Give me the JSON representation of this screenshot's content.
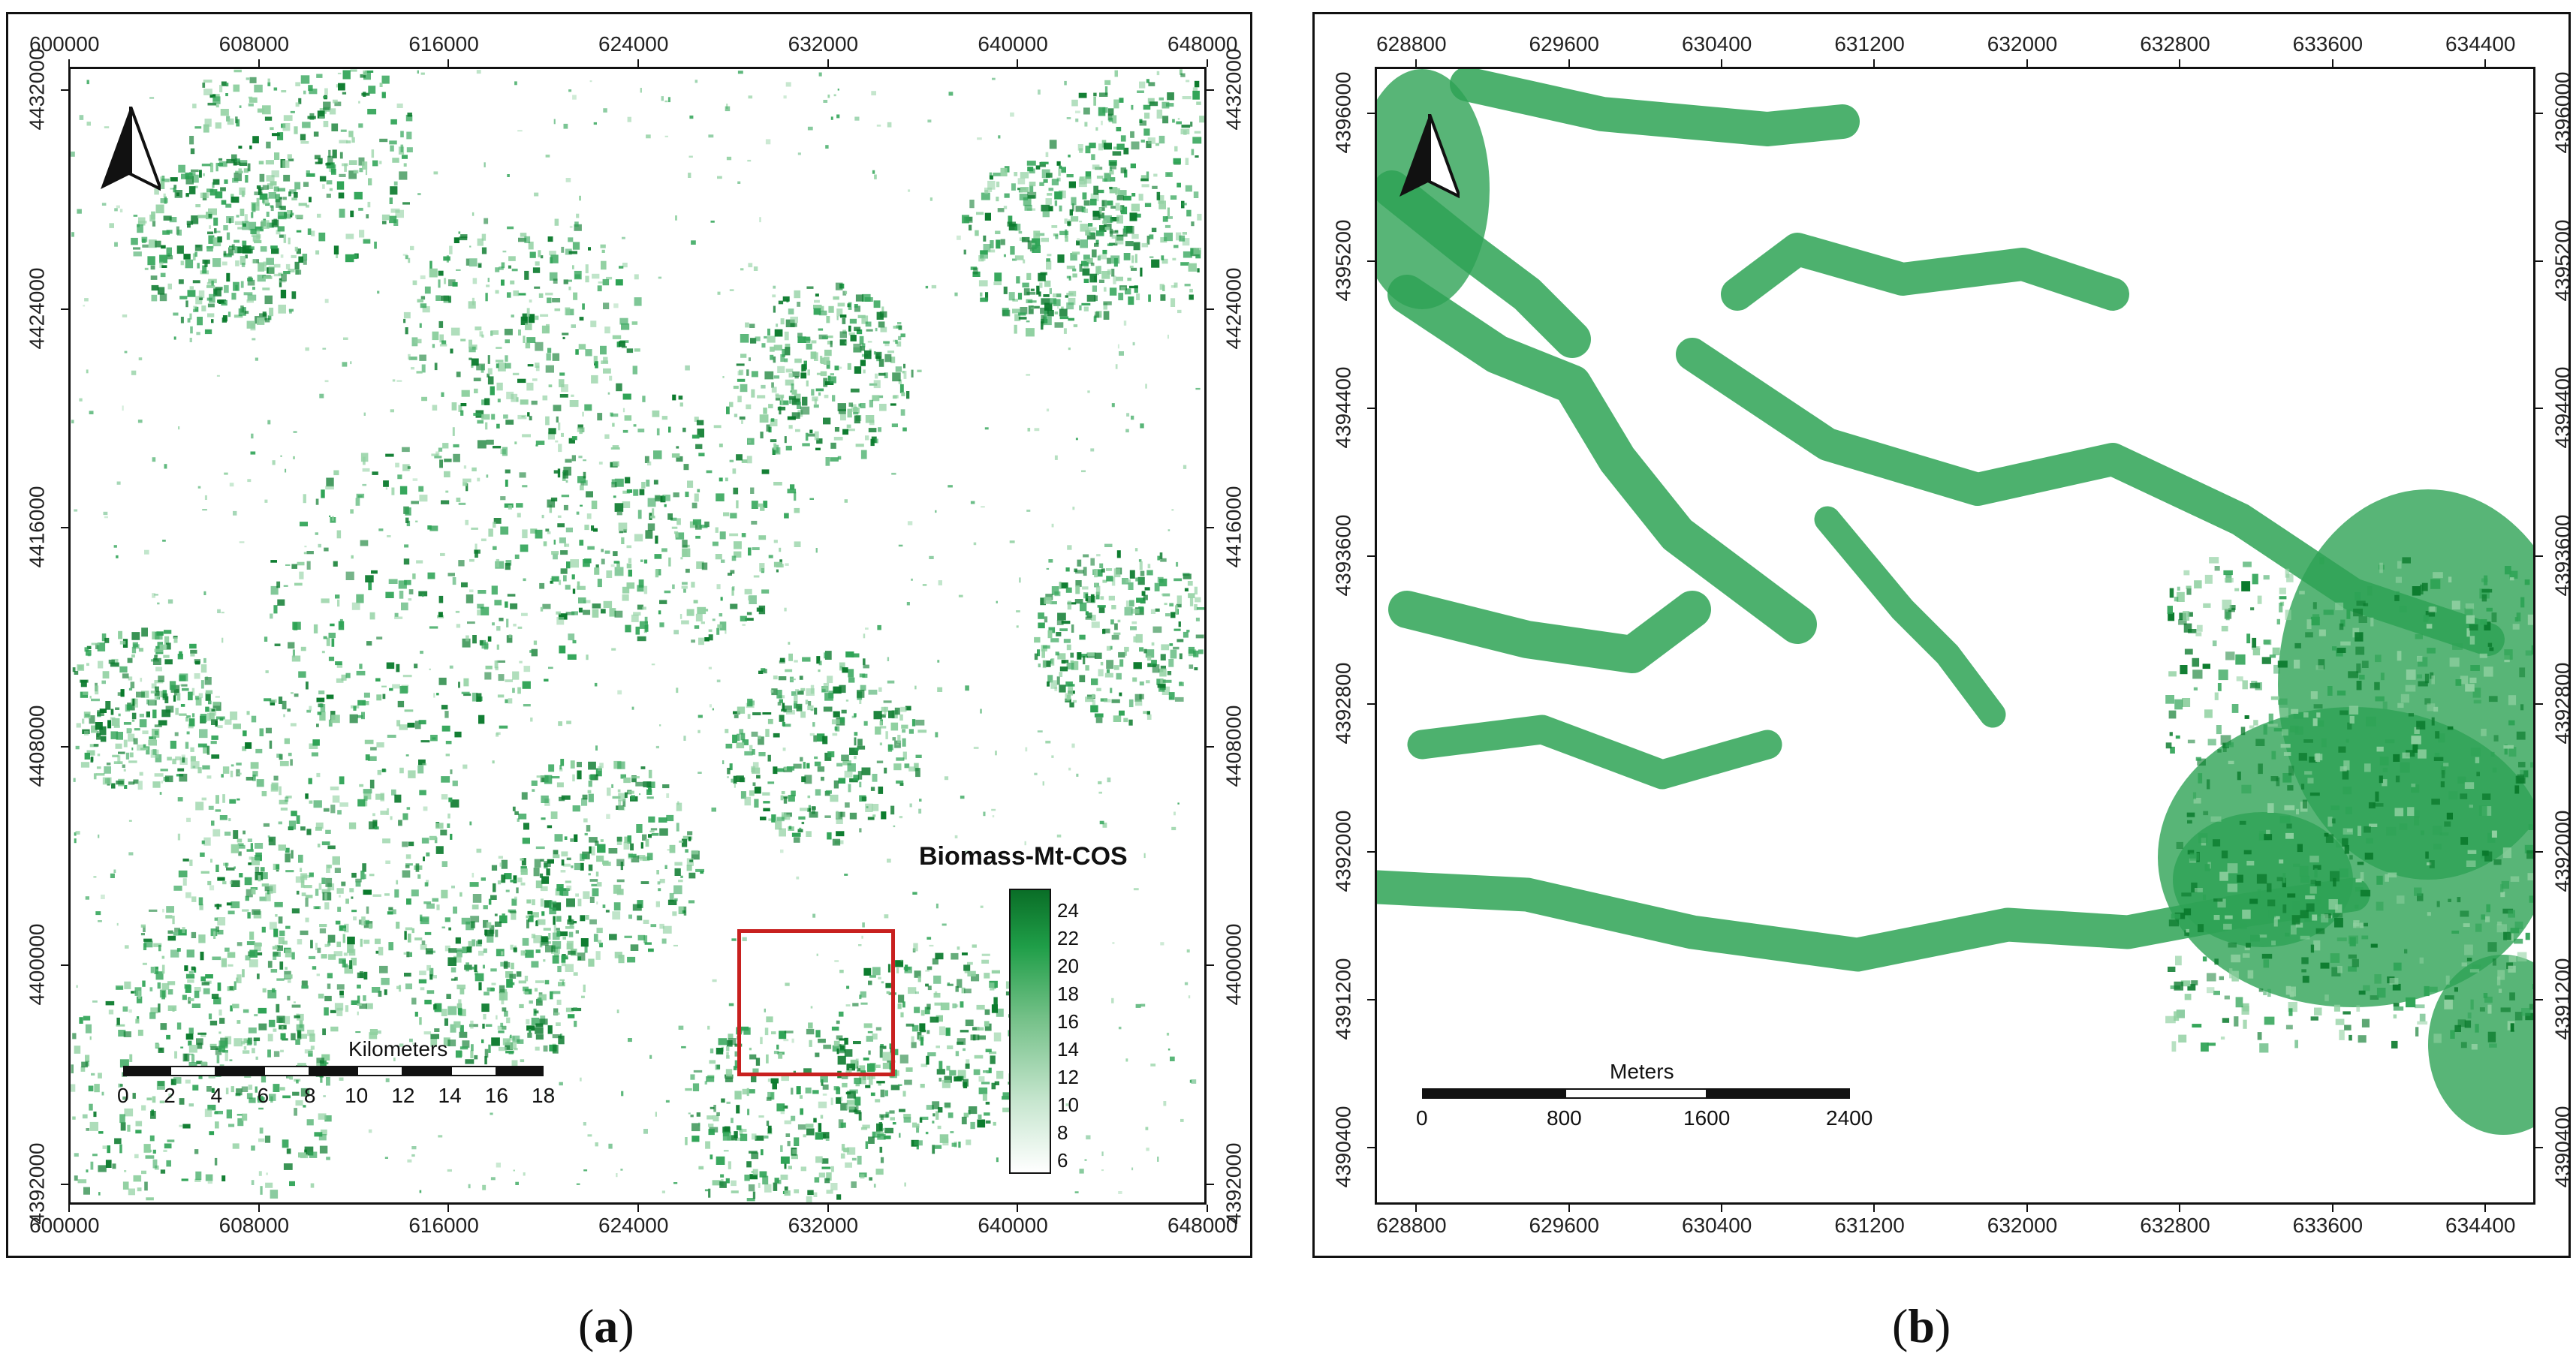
{
  "panel_a": {
    "x_ticks": [
      "600000",
      "608000",
      "616000",
      "624000",
      "632000",
      "640000",
      "648000"
    ],
    "y_ticks": [
      "4432000",
      "4424000",
      "4416000",
      "4408000",
      "4400000",
      "4392000"
    ],
    "legend": {
      "title": "Biomass-Mt-COS",
      "values": [
        "24",
        "22",
        "20",
        "18",
        "16",
        "14",
        "12",
        "10",
        "8",
        "6"
      ],
      "ramp_colors": [
        "#ffffff",
        "#c7e6cf",
        "#73c087",
        "#1f9e48",
        "#0a6e27"
      ]
    },
    "scale_bar": {
      "title": "Kilometers",
      "labels": [
        "0",
        "2",
        "4",
        "6",
        "8",
        "10",
        "12",
        "14",
        "16",
        "18"
      ]
    },
    "inset_box_color": "#c8201f",
    "caption_letter": "a"
  },
  "panel_b": {
    "x_ticks": [
      "628800",
      "629600",
      "630400",
      "631200",
      "632000",
      "632800",
      "633600",
      "634400"
    ],
    "y_ticks": [
      "4396000",
      "4395200",
      "4394400",
      "4393600",
      "4392800",
      "4392000",
      "4391200",
      "4390400"
    ],
    "scale_bar": {
      "title": "Meters",
      "labels": [
        "0",
        "800",
        "1600",
        "2400"
      ]
    },
    "caption_letter": "b"
  },
  "colors": {
    "vegetation_dark": "#0a7a2c",
    "vegetation_mid": "#2ea355",
    "vegetation_light": "#8fd0a0"
  },
  "icons": {
    "north_arrow": "north-arrow-icon"
  }
}
